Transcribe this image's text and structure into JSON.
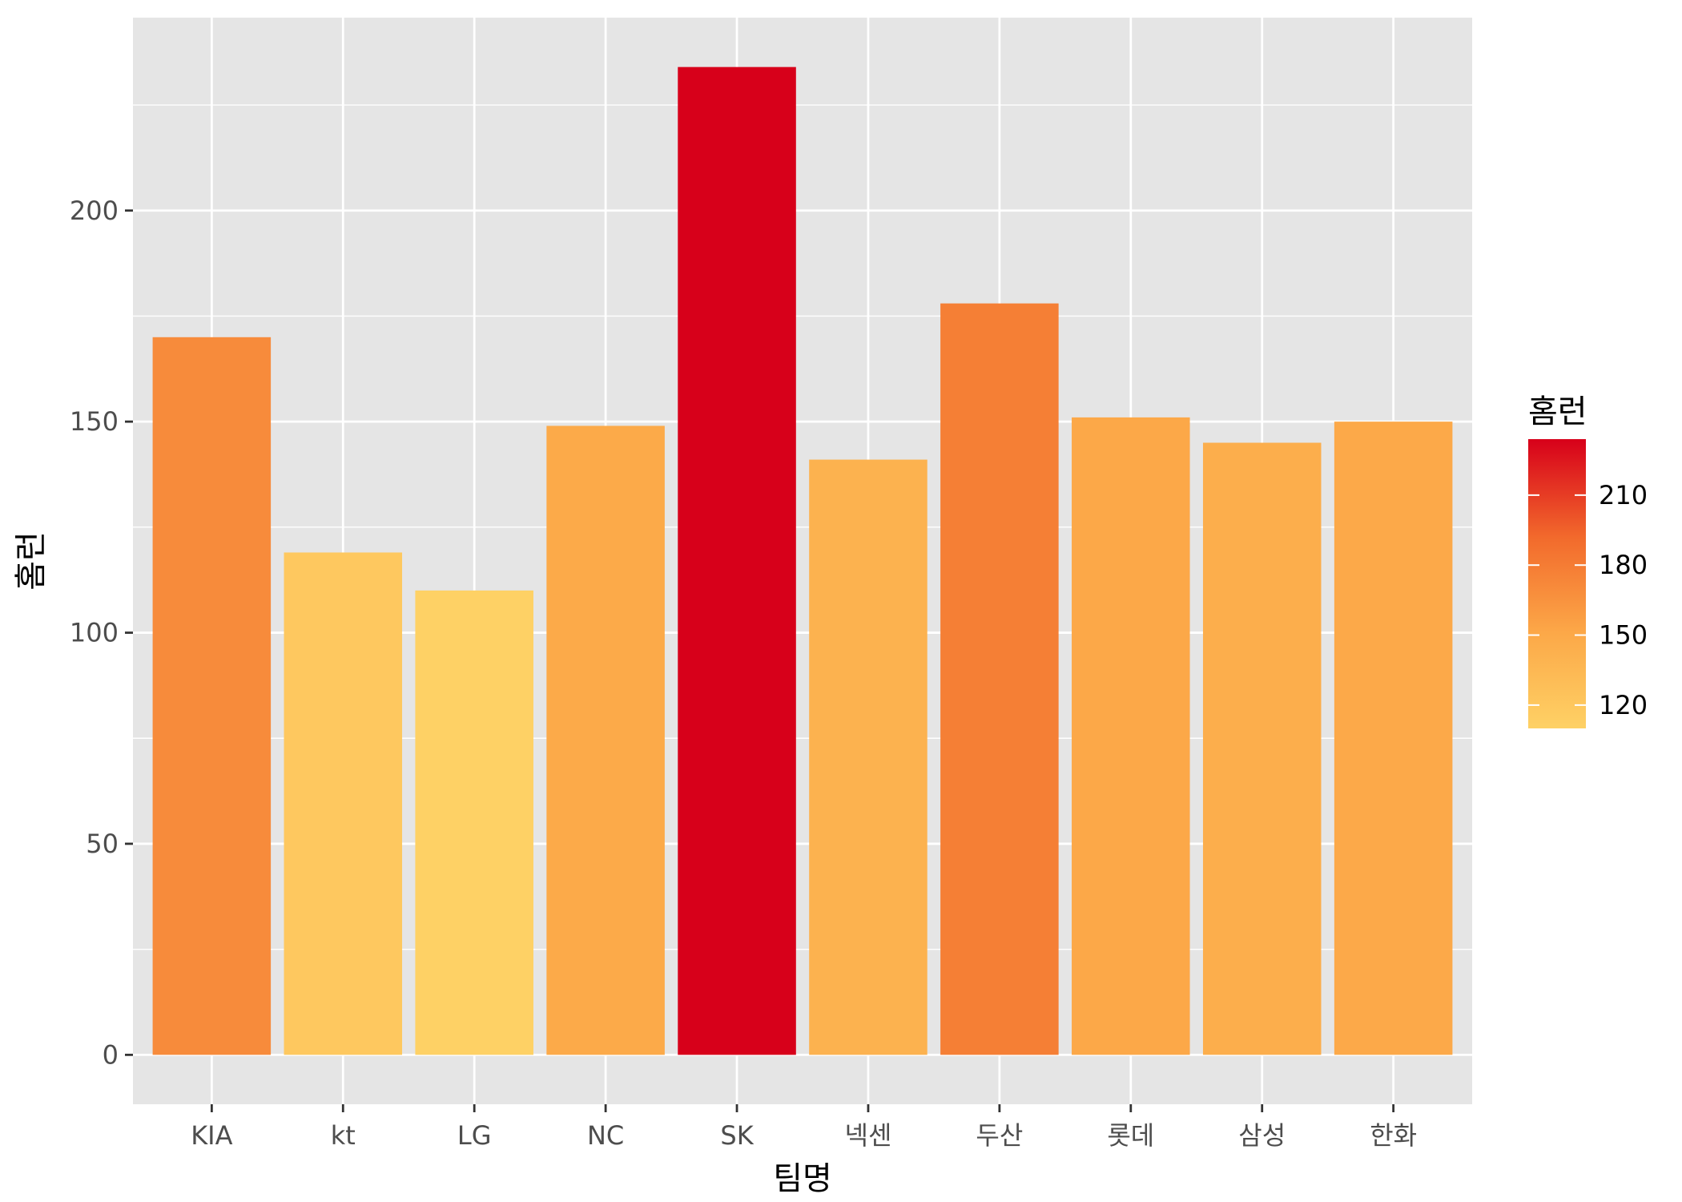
{
  "chart_data": {
    "type": "bar",
    "title": "",
    "xlabel": "팀명",
    "ylabel": "홈런",
    "categories": [
      "KIA",
      "kt",
      "LG",
      "NC",
      "SK",
      "넥센",
      "두산",
      "롯데",
      "삼성",
      "한화"
    ],
    "values": [
      170,
      119,
      110,
      149,
      234,
      141,
      178,
      151,
      145,
      150
    ],
    "ylim": [
      -11.7,
      245.7
    ],
    "yticks": [
      0,
      50,
      100,
      150,
      200
    ],
    "grid": true,
    "legend": {
      "title": "홈런",
      "position": "right",
      "ticks": [
        120,
        150,
        180,
        210
      ],
      "range": [
        110,
        234
      ],
      "color_low": "#fed165",
      "color_high": "#d7001a"
    },
    "colors": {
      "panel_background": "#e5e5e5",
      "grid": "#ffffff"
    }
  }
}
